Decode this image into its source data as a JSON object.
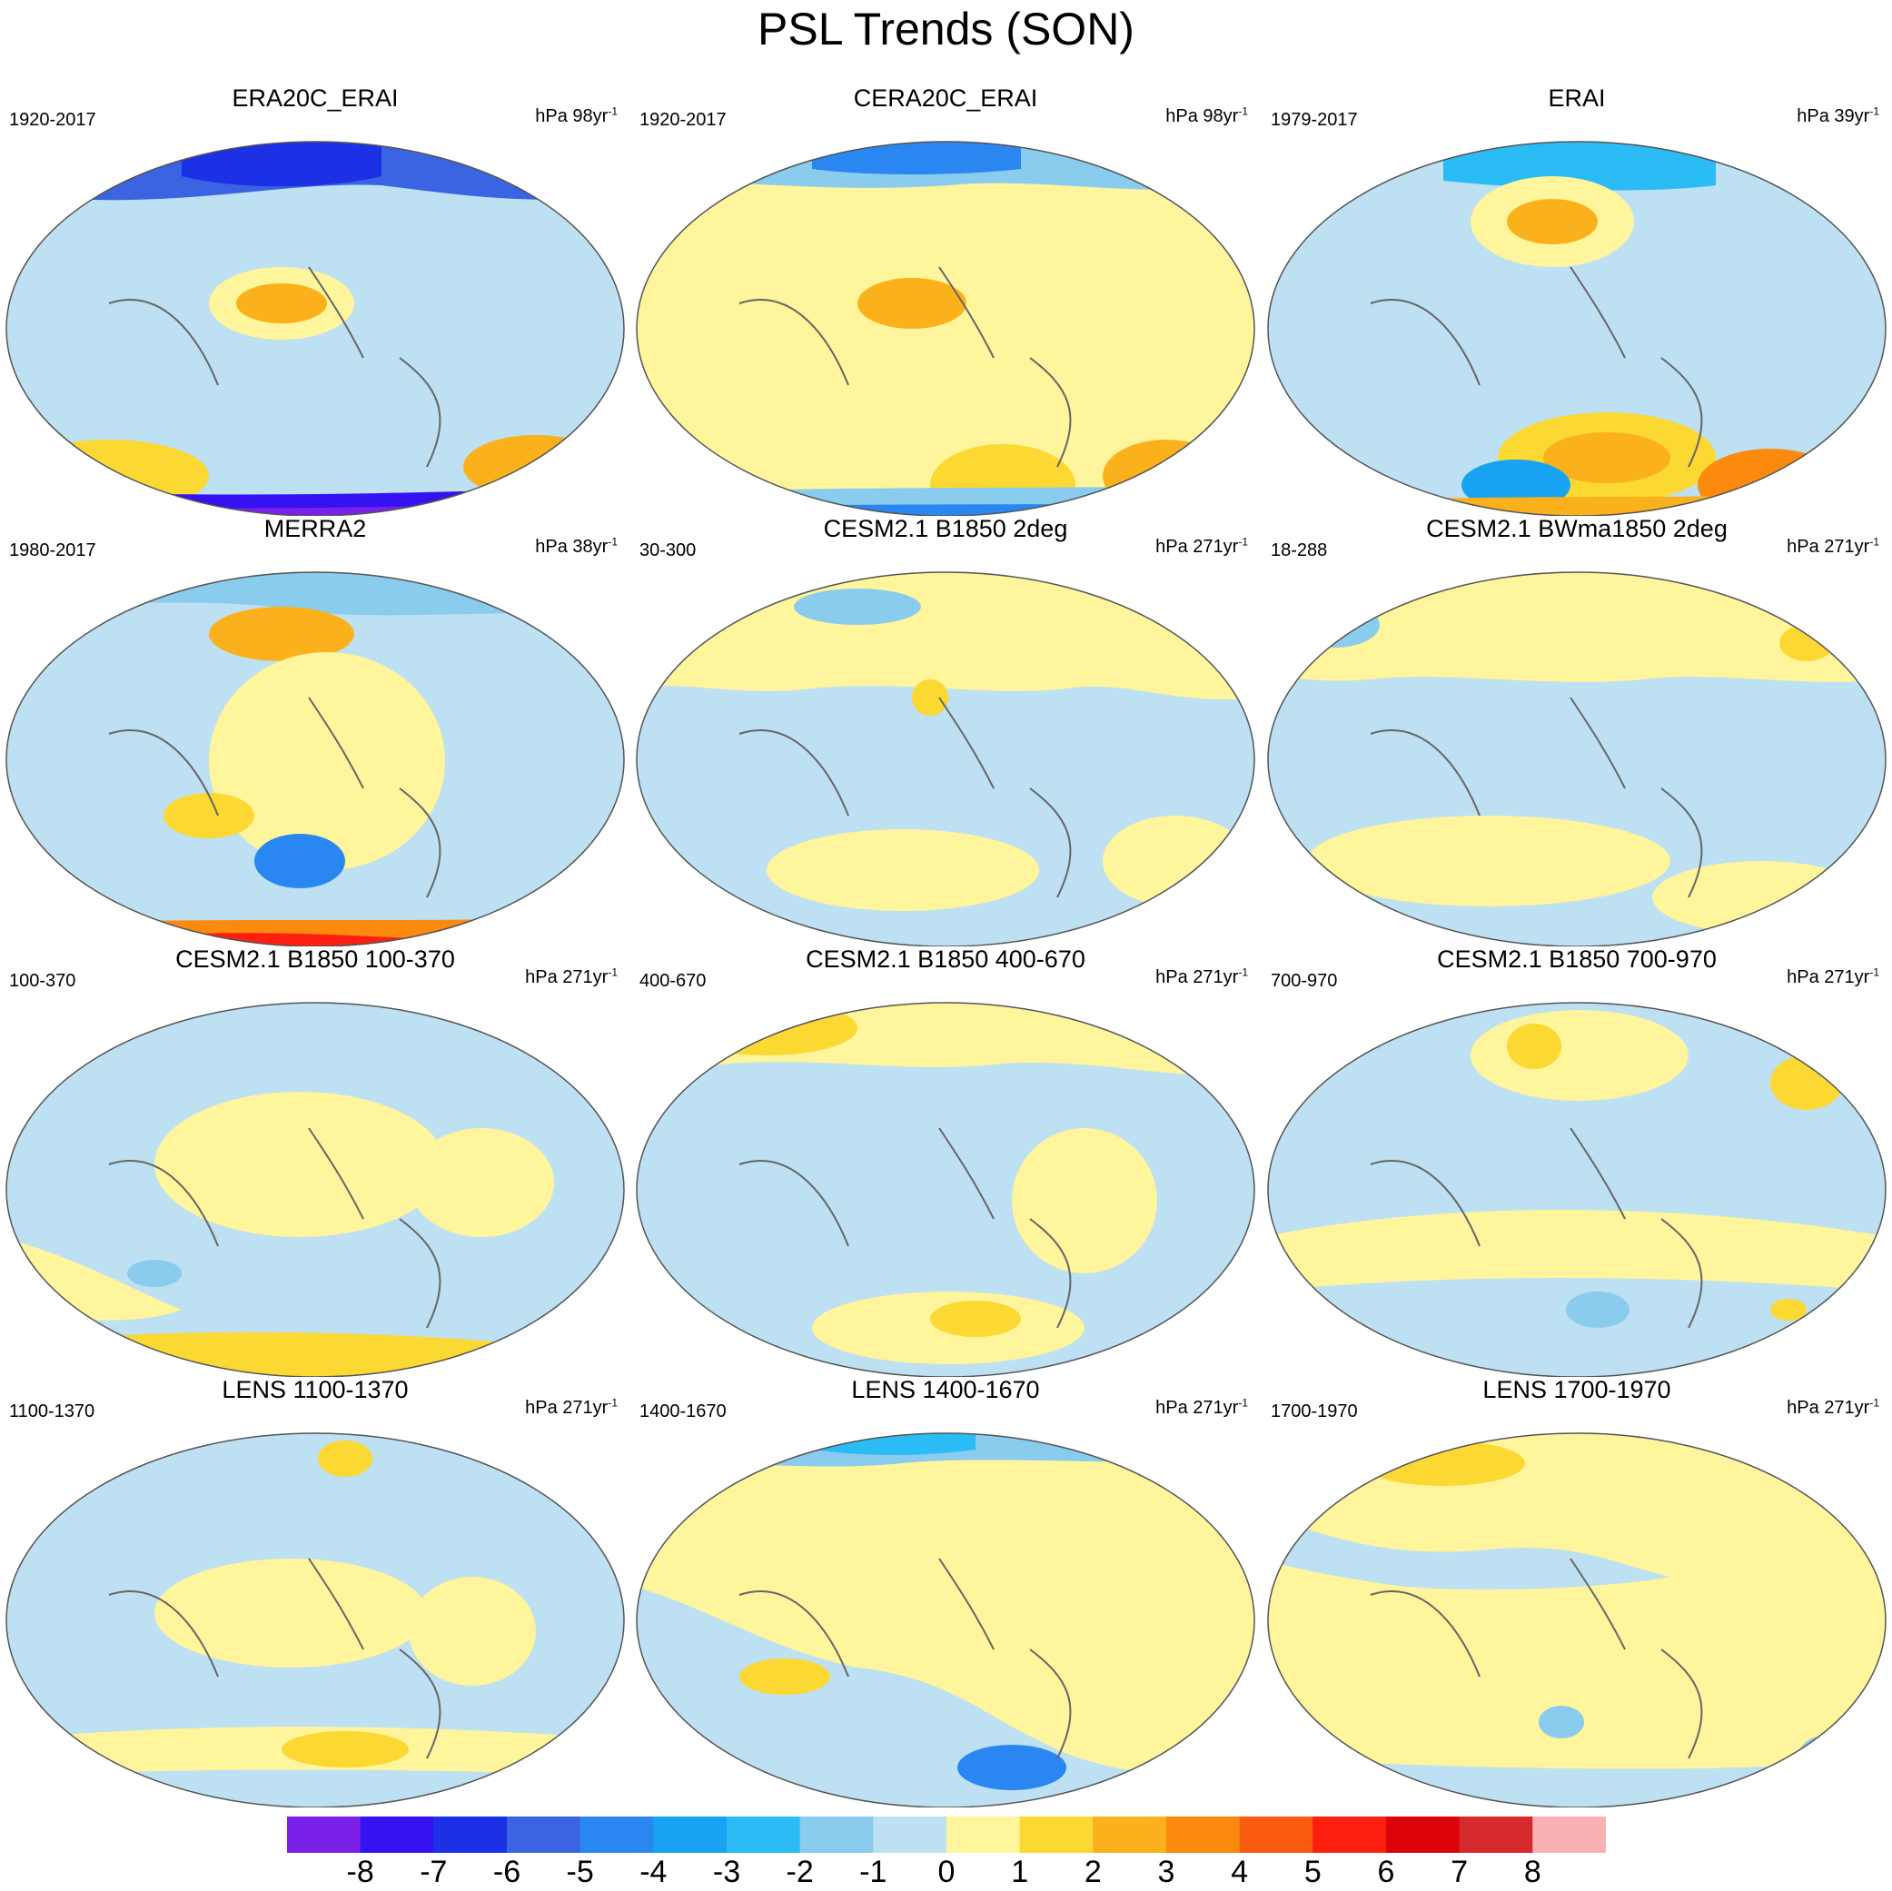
{
  "figure": {
    "title": "PSL Trends (SON)"
  },
  "colorbar": {
    "colors": [
      "#7b20e8",
      "#3412f2",
      "#1c30e6",
      "#3a64e2",
      "#2a86f0",
      "#17a3f1",
      "#2bbcf5",
      "#89ccee",
      "#bde0f2",
      "#fff59c",
      "#fbd832",
      "#fbb11b",
      "#fb8a0e",
      "#f95b10",
      "#fd1f0f",
      "#dc040a",
      "#d52a2d",
      "#fbb0b4"
    ],
    "tick_labels": [
      "-8",
      "-7",
      "-6",
      "-5",
      "-4",
      "-3",
      "-2",
      "-1",
      "0",
      "1",
      "2",
      "3",
      "4",
      "5",
      "6",
      "7",
      "8"
    ]
  },
  "panels": [
    {
      "title": "ERA20C_ERAI",
      "period": "1920-2017",
      "units_prefix": "hPa ",
      "units_value": "98yr",
      "units_exp": "-1"
    },
    {
      "title": "CERA20C_ERAI",
      "period": "1920-2017",
      "units_prefix": "hPa ",
      "units_value": "98yr",
      "units_exp": "-1"
    },
    {
      "title": "ERAI",
      "period": "1979-2017",
      "units_prefix": "hPa ",
      "units_value": "39yr",
      "units_exp": "-1"
    },
    {
      "title": "MERRA2",
      "period": "1980-2017",
      "units_prefix": "hPa ",
      "units_value": "38yr",
      "units_exp": "-1"
    },
    {
      "title": "CESM2.1 B1850 2deg",
      "period": "30-300",
      "units_prefix": "hPa ",
      "units_value": "271yr",
      "units_exp": "-1"
    },
    {
      "title": "CESM2.1 BWma1850 2deg",
      "period": "18-288",
      "units_prefix": "hPa ",
      "units_value": "271yr",
      "units_exp": "-1"
    },
    {
      "title": "CESM2.1 B1850 100-370",
      "period": "100-370",
      "units_prefix": "hPa ",
      "units_value": "271yr",
      "units_exp": "-1"
    },
    {
      "title": "CESM2.1 B1850 400-670",
      "period": "400-670",
      "units_prefix": "hPa ",
      "units_value": "271yr",
      "units_exp": "-1"
    },
    {
      "title": "CESM2.1 B1850 700-970",
      "period": "700-970",
      "units_prefix": "hPa ",
      "units_value": "271yr",
      "units_exp": "-1"
    },
    {
      "title": "LENS 1100-1370",
      "period": "1100-1370",
      "units_prefix": "hPa ",
      "units_value": "271yr",
      "units_exp": "-1"
    },
    {
      "title": "LENS 1400-1670",
      "period": "1400-1670",
      "units_prefix": "hPa ",
      "units_value": "271yr",
      "units_exp": "-1"
    },
    {
      "title": "LENS 1700-1970",
      "period": "1700-1970",
      "units_prefix": "hPa ",
      "units_value": "271yr",
      "units_exp": "-1"
    }
  ]
}
